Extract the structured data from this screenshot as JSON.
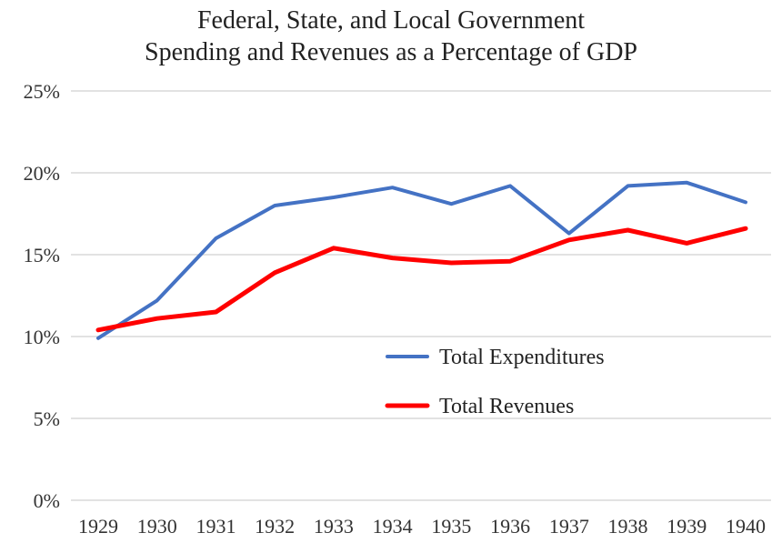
{
  "chart_data": {
    "type": "line",
    "title": "Federal, State, and Local Government",
    "subtitle": "Spending and Revenues as a Percentage of GDP",
    "categories": [
      "1929",
      "1930",
      "1931",
      "1932",
      "1933",
      "1934",
      "1935",
      "1936",
      "1937",
      "1938",
      "1939",
      "1940"
    ],
    "y_ticks": [
      "0%",
      "5%",
      "10%",
      "15%",
      "20%",
      "25%"
    ],
    "y_tick_values": [
      0,
      5,
      10,
      15,
      20,
      25
    ],
    "ylim": [
      0,
      25
    ],
    "grid": "horizontal",
    "legend_position": "center-right",
    "series": [
      {
        "name": "Total Expenditures",
        "color": "#4472c4",
        "values": [
          9.9,
          12.2,
          16.0,
          18.0,
          18.5,
          19.1,
          18.1,
          19.2,
          16.3,
          19.2,
          19.4,
          18.2
        ]
      },
      {
        "name": "Total Revenues",
        "color": "#ff0000",
        "values": [
          10.4,
          11.1,
          11.5,
          13.9,
          15.4,
          14.8,
          14.5,
          14.6,
          15.9,
          16.5,
          15.7,
          16.6
        ]
      }
    ],
    "gridline_color": "#d9d9d9"
  }
}
